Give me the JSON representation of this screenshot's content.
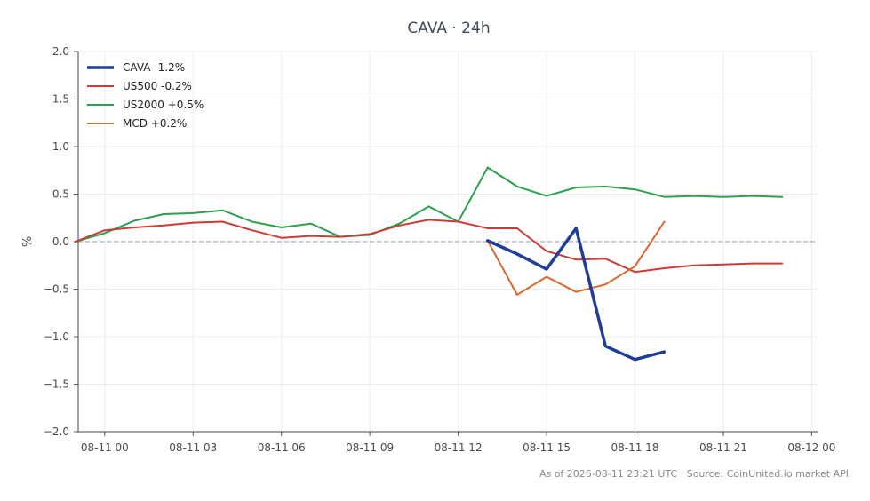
{
  "chart_data": {
    "type": "line",
    "title": "CAVA · 24h",
    "xlabel": "",
    "ylabel": "%",
    "ylim": [
      -2.0,
      2.0
    ],
    "xlim": [
      "2026-08-10 23:06",
      "2026-08-12 00:12"
    ],
    "grid": true,
    "legend_position": "top-left",
    "zero_line": true,
    "x_ticks": [
      {
        "t": "2026-08-11 00:00",
        "label": "08-11 00"
      },
      {
        "t": "2026-08-11 03:00",
        "label": "08-11 03"
      },
      {
        "t": "2026-08-11 06:00",
        "label": "08-11 06"
      },
      {
        "t": "2026-08-11 09:00",
        "label": "08-11 09"
      },
      {
        "t": "2026-08-11 12:00",
        "label": "08-11 12"
      },
      {
        "t": "2026-08-11 15:00",
        "label": "08-11 15"
      },
      {
        "t": "2026-08-11 18:00",
        "label": "08-11 18"
      },
      {
        "t": "2026-08-11 21:00",
        "label": "08-11 21"
      },
      {
        "t": "2026-08-12 00:00",
        "label": "08-12 00"
      }
    ],
    "y_ticks": [
      {
        "v": 2.0,
        "label": "2.0"
      },
      {
        "v": 1.5,
        "label": "1.5"
      },
      {
        "v": 1.0,
        "label": "1.0"
      },
      {
        "v": 0.5,
        "label": "0.5"
      },
      {
        "v": 0.0,
        "label": "0.0"
      },
      {
        "v": -0.5,
        "label": "−0.5"
      },
      {
        "v": -1.0,
        "label": "−1.0"
      },
      {
        "v": -1.5,
        "label": "−1.5"
      },
      {
        "v": -2.0,
        "label": "−2.0"
      }
    ],
    "series": [
      {
        "name": "CAVA -1.2%",
        "color": "#1f3d99",
        "width": 3.5,
        "x": [
          "2026-08-11 13:00",
          "2026-08-11 14:00",
          "2026-08-11 15:00",
          "2026-08-11 16:00",
          "2026-08-11 17:00",
          "2026-08-11 18:00",
          "2026-08-11 19:00"
        ],
        "y": [
          0.01,
          -0.13,
          -0.29,
          0.14,
          -1.1,
          -1.24,
          -1.16
        ]
      },
      {
        "name": "US500 -0.2%",
        "color": "#d03a35",
        "width": 2,
        "x": [
          "2026-08-10 23:00",
          "2026-08-11 00:00",
          "2026-08-11 01:00",
          "2026-08-11 02:00",
          "2026-08-11 03:00",
          "2026-08-11 04:00",
          "2026-08-11 05:00",
          "2026-08-11 06:00",
          "2026-08-11 07:00",
          "2026-08-11 08:00",
          "2026-08-11 09:00",
          "2026-08-11 10:00",
          "2026-08-11 11:00",
          "2026-08-11 12:00",
          "2026-08-11 13:00",
          "2026-08-11 14:00",
          "2026-08-11 15:00",
          "2026-08-11 16:00",
          "2026-08-11 17:00",
          "2026-08-11 18:00",
          "2026-08-11 19:00",
          "2026-08-11 20:00",
          "2026-08-11 21:00",
          "2026-08-11 22:00",
          "2026-08-11 23:00"
        ],
        "y": [
          0.0,
          0.12,
          0.15,
          0.17,
          0.2,
          0.21,
          0.12,
          0.04,
          0.06,
          0.05,
          0.08,
          0.17,
          0.23,
          0.21,
          0.14,
          0.14,
          -0.1,
          -0.19,
          -0.18,
          -0.32,
          -0.28,
          -0.25,
          -0.24,
          -0.23,
          -0.23
        ]
      },
      {
        "name": "US2000 +0.5%",
        "color": "#2ca14d",
        "width": 2,
        "x": [
          "2026-08-10 23:00",
          "2026-08-11 00:00",
          "2026-08-11 01:00",
          "2026-08-11 02:00",
          "2026-08-11 03:00",
          "2026-08-11 04:00",
          "2026-08-11 05:00",
          "2026-08-11 06:00",
          "2026-08-11 07:00",
          "2026-08-11 08:00",
          "2026-08-11 09:00",
          "2026-08-11 10:00",
          "2026-08-11 11:00",
          "2026-08-11 12:00",
          "2026-08-11 13:00",
          "2026-08-11 14:00",
          "2026-08-11 15:00",
          "2026-08-11 16:00",
          "2026-08-11 17:00",
          "2026-08-11 18:00",
          "2026-08-11 19:00",
          "2026-08-11 20:00",
          "2026-08-11 21:00",
          "2026-08-11 22:00",
          "2026-08-11 23:00"
        ],
        "y": [
          0.0,
          0.09,
          0.22,
          0.29,
          0.3,
          0.33,
          0.21,
          0.15,
          0.19,
          0.05,
          0.07,
          0.19,
          0.37,
          0.21,
          0.78,
          0.58,
          0.48,
          0.57,
          0.58,
          0.55,
          0.47,
          0.48,
          0.47,
          0.48,
          0.47
        ]
      },
      {
        "name": "MCD +0.2%",
        "color": "#d9682a",
        "width": 2,
        "x": [
          "2026-08-11 13:00",
          "2026-08-11 14:00",
          "2026-08-11 15:00",
          "2026-08-11 16:00",
          "2026-08-11 17:00",
          "2026-08-11 18:00",
          "2026-08-11 19:00"
        ],
        "y": [
          0.01,
          -0.56,
          -0.37,
          -0.53,
          -0.45,
          -0.26,
          0.21
        ]
      }
    ]
  },
  "footer": "As of 2026-08-11 23:21 UTC · Source: CoinUnited.io market API"
}
